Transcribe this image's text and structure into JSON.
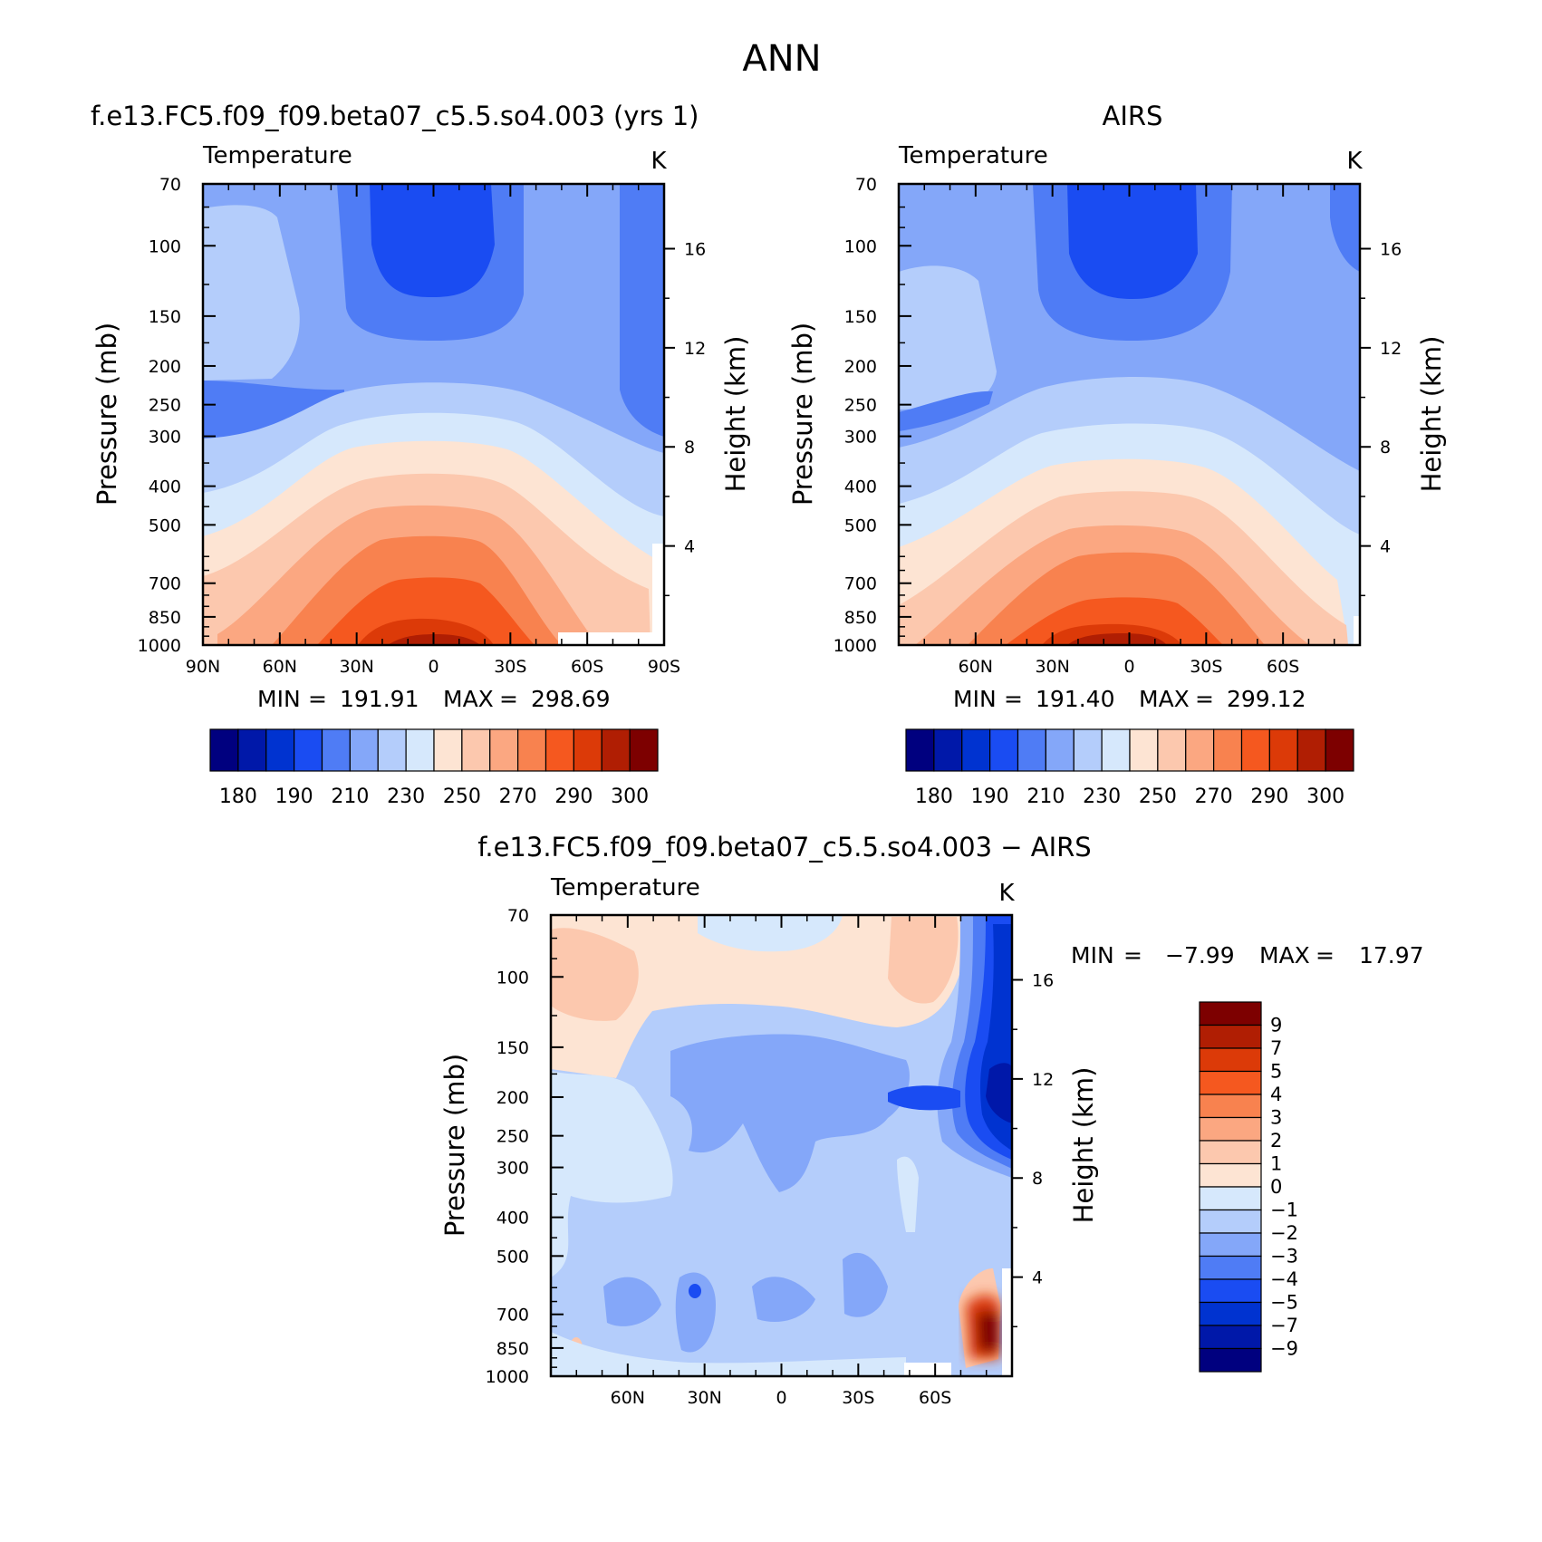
{
  "figure": {
    "title": "ANN"
  },
  "chart_data": [
    {
      "type": "heatmap",
      "title": "f.e13.FC5.f09_f09.beta07_c5.5.so4.003 (yrs 1)",
      "variable": "Temperature",
      "units": "K",
      "ylabel": "Pressure (mb)",
      "y2label": "Height (km)",
      "y_scale": "log",
      "y_ticks": [
        "70",
        "100",
        "150",
        "200",
        "250",
        "300",
        "400",
        "500",
        "700",
        "850",
        "1000"
      ],
      "y2_ticks": [
        "16",
        "12",
        "8",
        "4"
      ],
      "x_ticks": [
        "90N",
        "60N",
        "30N",
        "0",
        "30S",
        "60S",
        "90S"
      ],
      "xlim": [
        "90N",
        "90S"
      ],
      "ylim": [
        1000,
        70
      ],
      "stats": {
        "min_label": "MIN",
        "min": "191.91",
        "max_label": "MAX",
        "max": "298.69"
      },
      "colorbar": {
        "orientation": "horizontal",
        "labels": [
          "180",
          "190",
          "210",
          "230",
          "250",
          "270",
          "290",
          "300"
        ],
        "colors": [
          "#00007f",
          "#0018a9",
          "#0033d0",
          "#1a4cf2",
          "#4f7cf5",
          "#84a7f9",
          "#b4cdfb",
          "#d6e8fc",
          "#fde4d3",
          "#fcc8ae",
          "#fba781",
          "#f8824f",
          "#f5581f",
          "#dc3a08",
          "#b01e03",
          "#7d0000"
        ]
      }
    },
    {
      "type": "heatmap",
      "title": "AIRS",
      "variable": "Temperature",
      "units": "K",
      "ylabel": "Pressure (mb)",
      "y2label": "Height (km)",
      "y_scale": "log",
      "y_ticks": [
        "70",
        "100",
        "150",
        "200",
        "250",
        "300",
        "400",
        "500",
        "700",
        "850",
        "1000"
      ],
      "y2_ticks": [
        "16",
        "12",
        "8",
        "4"
      ],
      "x_ticks": [
        "60N",
        "30N",
        "0",
        "30S",
        "60S"
      ],
      "ylim": [
        1000,
        70
      ],
      "stats": {
        "min_label": "MIN",
        "min": "191.40",
        "max_label": "MAX",
        "max": "299.12"
      },
      "colorbar": {
        "orientation": "horizontal",
        "labels": [
          "180",
          "190",
          "210",
          "230",
          "250",
          "270",
          "290",
          "300"
        ],
        "colors": [
          "#00007f",
          "#0018a9",
          "#0033d0",
          "#1a4cf2",
          "#4f7cf5",
          "#84a7f9",
          "#b4cdfb",
          "#d6e8fc",
          "#fde4d3",
          "#fcc8ae",
          "#fba781",
          "#f8824f",
          "#f5581f",
          "#dc3a08",
          "#b01e03",
          "#7d0000"
        ]
      }
    },
    {
      "type": "heatmap",
      "title": "f.e13.FC5.f09_f09.beta07_c5.5.so4.003 − AIRS",
      "variable": "Temperature",
      "units": "K",
      "ylabel": "Pressure (mb)",
      "y2label": "Height (km)",
      "y_scale": "log",
      "y_ticks": [
        "70",
        "100",
        "150",
        "200",
        "250",
        "300",
        "400",
        "500",
        "700",
        "850",
        "1000"
      ],
      "y2_ticks": [
        "16",
        "12",
        "8",
        "4"
      ],
      "x_ticks": [
        "60N",
        "30N",
        "0",
        "30S",
        "60S"
      ],
      "ylim": [
        1000,
        70
      ],
      "stats": {
        "min_label": "MIN",
        "min": "−7.99",
        "max_label": "MAX",
        "max": "17.97"
      },
      "colorbar": {
        "orientation": "vertical",
        "labels": [
          "9",
          "7",
          "5",
          "4",
          "3",
          "2",
          "1",
          "0",
          "−1",
          "−2",
          "−3",
          "−4",
          "−5",
          "−7",
          "−9"
        ],
        "colors": [
          "#7d0000",
          "#b01e03",
          "#dc3a08",
          "#f5581f",
          "#f8824f",
          "#fba781",
          "#fcc8ae",
          "#fde4d3",
          "#d6e8fc",
          "#b4cdfb",
          "#84a7f9",
          "#4f7cf5",
          "#1a4cf2",
          "#0033d0",
          "#0018a9",
          "#00007f"
        ]
      }
    }
  ]
}
